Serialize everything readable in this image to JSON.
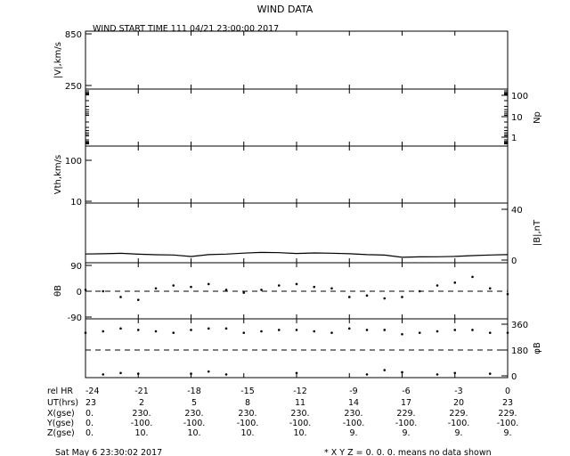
{
  "title": "WIND DATA",
  "subtitle": "WIND START TIME 111 04/21 23:00:00 2017",
  "footer_left": "Sat May  6 23:30:02 2017",
  "footer_right": "* X Y Z = 0. 0. 0. means no data shown",
  "chart_data": {
    "type": "line",
    "x_label": "rel HR",
    "x_range": [
      -24,
      0
    ],
    "x_ticks": [
      -24,
      -21,
      -18,
      -15,
      -12,
      -9,
      -6,
      -3,
      0
    ],
    "panels": [
      {
        "id": "v",
        "left_label": "|V|,km/s",
        "right_label": "",
        "left_ticks": [
          "850",
          "250"
        ],
        "right_ticks": [],
        "values": []
      },
      {
        "id": "np",
        "left_label": "",
        "right_label": "Np",
        "left_ticks": [],
        "right_ticks": [
          "100",
          "10",
          "1"
        ],
        "values": []
      },
      {
        "id": "vth",
        "left_label": "Vth,km/s",
        "right_label": "",
        "left_ticks": [
          "100",
          "10"
        ],
        "right_ticks": [],
        "values": []
      },
      {
        "id": "b",
        "left_label": "",
        "right_label": "|B|,nT",
        "left_ticks": [],
        "right_ticks": [
          "40",
          "0"
        ],
        "ylim": [
          0,
          40
        ],
        "series": [
          {
            "x": [
              -24,
              -23,
              -22,
              -21,
              -20,
              -19,
              -18,
              -17,
              -16,
              -15,
              -14,
              -13,
              -12,
              -11,
              -10,
              -9,
              -8,
              -7,
              -6,
              -5,
              -4,
              -3,
              -2,
              -1,
              0
            ],
            "y": [
              4.8,
              5.0,
              5.3,
              4.6,
              4.2,
              4.0,
              2.8,
              4.3,
              4.7,
              5.5,
              6.0,
              5.8,
              5.2,
              5.6,
              5.4,
              5.0,
              4.3,
              3.9,
              2.2,
              2.5,
              2.6,
              2.9,
              3.5,
              4.0,
              4.3
            ]
          }
        ]
      },
      {
        "id": "theta",
        "left_label": "θB",
        "right_label": "",
        "left_ticks": [
          "90",
          "0",
          "-90"
        ],
        "right_ticks": [],
        "ylim": [
          -90,
          90
        ],
        "style": "scatter",
        "series": [
          {
            "x": [
              -24,
              -23,
              -22,
              -21,
              -20,
              -19,
              -18,
              -17,
              -16,
              -15,
              -14,
              -13,
              -12,
              -11,
              -10,
              -9,
              -8,
              -7,
              -6,
              -5,
              -4,
              -3,
              -2,
              -1,
              0
            ],
            "y": [
              5,
              0,
              -20,
              -30,
              10,
              20,
              15,
              25,
              5,
              -5,
              5,
              20,
              25,
              15,
              10,
              -20,
              -15,
              -25,
              -20,
              0,
              20,
              30,
              50,
              10,
              -10
            ]
          }
        ]
      },
      {
        "id": "phi",
        "left_label": "",
        "right_label": "φB",
        "left_ticks": [],
        "right_ticks": [
          "360",
          "180",
          "0"
        ],
        "ylim": [
          0,
          360
        ],
        "style": "scatter",
        "series": [
          {
            "x": [
              -24,
              -23,
              -22,
              -21,
              -20,
              -19,
              -18,
              -17,
              -16,
              -15,
              -14,
              -13,
              -12,
              -11,
              -10,
              -9,
              -8,
              -7,
              -6,
              -5,
              -4,
              -3,
              -2,
              -1,
              0
            ],
            "y": [
              300,
              310,
              330,
              320,
              310,
              300,
              320,
              330,
              330,
              300,
              310,
              320,
              320,
              310,
              300,
              330,
              320,
              320,
              290,
              300,
              310,
              320,
              320,
              300,
              300
            ]
          },
          {
            "x": [
              -23,
              -22,
              -21,
              -18,
              -17,
              -16,
              -12,
              -8,
              -7,
              -6,
              -4,
              -3,
              -1
            ],
            "y": [
              10,
              20,
              15,
              15,
              30,
              10,
              20,
              10,
              40,
              25,
              10,
              20,
              15
            ]
          }
        ]
      }
    ],
    "table": {
      "rows": [
        {
          "label": "rel HR",
          "cells": [
            "-24",
            "-21",
            "-18",
            "-15",
            "-12",
            "-9",
            "-6",
            "-3",
            "0"
          ]
        },
        {
          "label": "UT(hrs)",
          "cells": [
            "23",
            "2",
            "5",
            "8",
            "11",
            "14",
            "17",
            "20",
            "23"
          ]
        },
        {
          "label": "X(gse)",
          "cells": [
            "0.",
            "230.",
            "230.",
            "230.",
            "230.",
            "230.",
            "229.",
            "229.",
            "229."
          ]
        },
        {
          "label": "Y(gse)",
          "cells": [
            "0.",
            "-100.",
            "-100.",
            "-100.",
            "-100.",
            "-100.",
            "-100.",
            "-100.",
            "-100."
          ]
        },
        {
          "label": "Z(gse)",
          "cells": [
            "0.",
            "10.",
            "10.",
            "10.",
            "10.",
            "9.",
            "9.",
            "9.",
            "9."
          ]
        }
      ]
    }
  }
}
